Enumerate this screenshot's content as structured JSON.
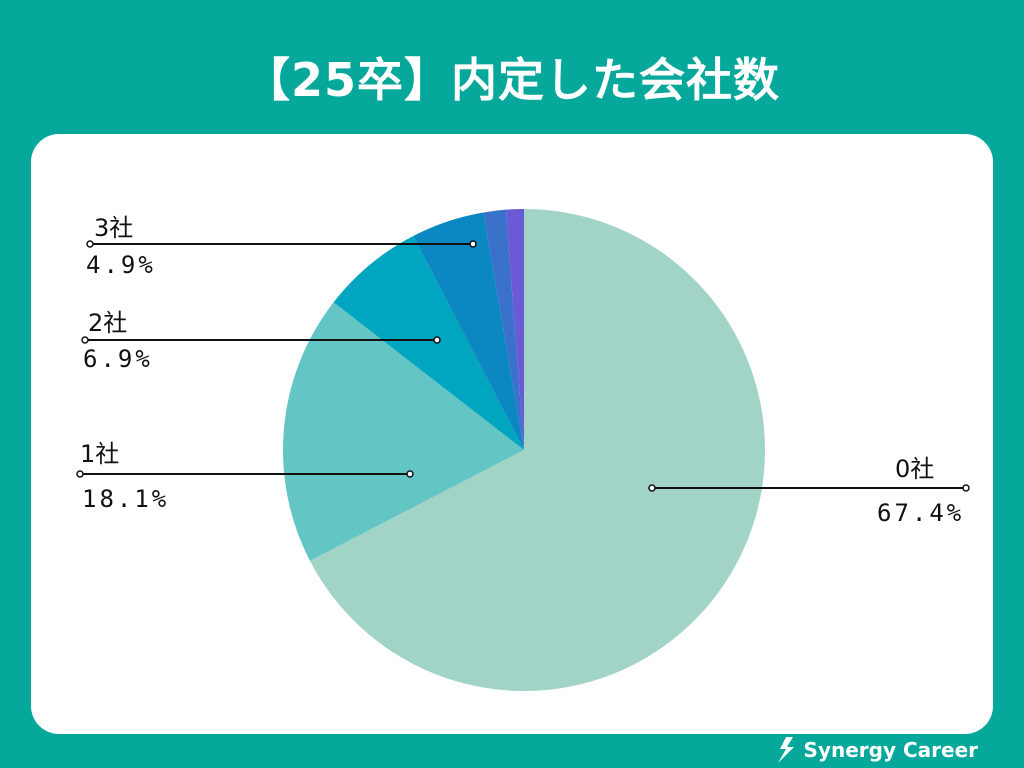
{
  "title": "【25卒】内定した会社数",
  "brand": {
    "name": "Synergy Career",
    "icon": "synergy-career-logo-icon"
  },
  "colors": {
    "background": "#06a89b",
    "card": "#ffffff"
  },
  "chart_data": {
    "type": "pie",
    "title": "【25卒】内定した会社数",
    "slices": [
      {
        "label": "0社",
        "value": 67.4,
        "value_label": "67.4%",
        "color": "#a1d4c6"
      },
      {
        "label": "1社",
        "value": 18.1,
        "value_label": "18.1%",
        "color": "#64c5c5"
      },
      {
        "label": "2社",
        "value": 6.9,
        "value_label": "6.9%",
        "color": "#00a6c0"
      },
      {
        "label": "3社",
        "value": 4.9,
        "value_label": "4.9%",
        "color": "#0b87c2"
      },
      {
        "label": "",
        "value": 1.5,
        "value_label": "",
        "color": "#3a72cb"
      },
      {
        "label": "",
        "value": 1.2,
        "value_label": "",
        "color": "#6a5ad6"
      }
    ]
  }
}
